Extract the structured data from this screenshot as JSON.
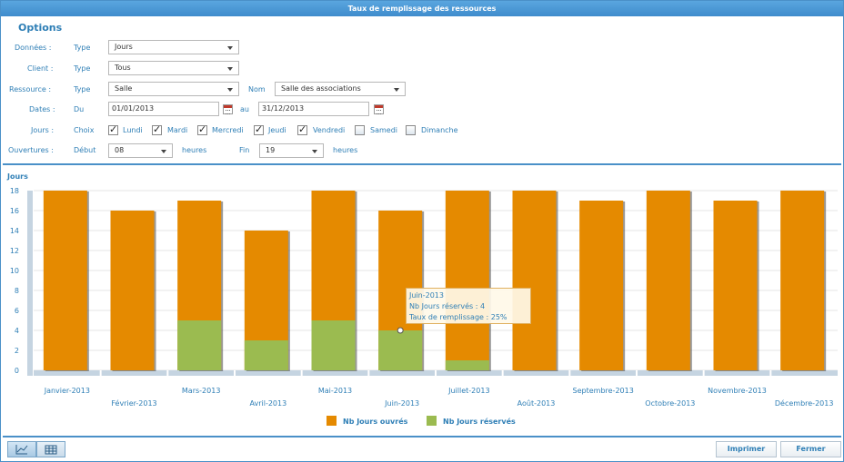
{
  "window": {
    "title": "Taux de remplissage des ressources"
  },
  "options": {
    "title": "Options",
    "donnees": {
      "label": "Données :",
      "sub": "Type",
      "value": "Jours"
    },
    "client": {
      "label": "Client :",
      "sub": "Type",
      "value": "Tous"
    },
    "ressource": {
      "label": "Ressource :",
      "sub": "Type",
      "value": "Salle",
      "nom_label": "Nom",
      "nom_value": "Salle des associations"
    },
    "dates": {
      "label": "Dates :",
      "du_label": "Du",
      "du_value": "01/01/2013",
      "au_label": "au",
      "au_value": "31/12/2013"
    },
    "jours": {
      "label": "Jours :",
      "sub": "Choix",
      "items": [
        {
          "label": "Lundi",
          "checked": true
        },
        {
          "label": "Mardi",
          "checked": true
        },
        {
          "label": "Mercredi",
          "checked": true
        },
        {
          "label": "Jeudi",
          "checked": true
        },
        {
          "label": "Vendredi",
          "checked": true
        },
        {
          "label": "Samedi",
          "checked": false
        },
        {
          "label": "Dimanche",
          "checked": false
        }
      ]
    },
    "ouvertures": {
      "label": "Ouvertures :",
      "debut_label": "Début",
      "debut_value": "08",
      "heures1": "heures",
      "fin_label": "Fin",
      "fin_value": "19",
      "heures2": "heures"
    }
  },
  "chart_data": {
    "type": "bar",
    "ylabel": "Jours",
    "ylim": [
      0,
      18
    ],
    "yticks": [
      0,
      2,
      4,
      6,
      8,
      10,
      12,
      14,
      16,
      18
    ],
    "categories": [
      "Janvier-2013",
      "Février-2013",
      "Mars-2013",
      "Avril-2013",
      "Mai-2013",
      "Juin-2013",
      "Juillet-2013",
      "Août-2013",
      "Septembre-2013",
      "Octobre-2013",
      "Novembre-2013",
      "Décembre-2013"
    ],
    "series": [
      {
        "name": "Nb Jours ouvrés",
        "color": "#e58a00",
        "values": [
          18,
          16,
          17,
          14,
          18,
          16,
          18,
          18,
          17,
          18,
          17,
          18
        ]
      },
      {
        "name": "Nb Jours réservés",
        "color": "#9bbb50",
        "values": [
          0,
          0,
          5,
          3,
          5,
          4,
          1,
          0,
          0,
          0,
          0,
          0
        ]
      }
    ],
    "grid": true,
    "legend": "bottom-center"
  },
  "tooltip": {
    "line1": "Juin-2013",
    "line2": "Nb Jours réservés : 4",
    "line3": "Taux de remplissage : 25%"
  },
  "footer": {
    "tab_chart_icon": "line-chart-icon",
    "tab_table_icon": "table-icon",
    "print_label": "Imprimer",
    "close_label": "Fermer"
  }
}
